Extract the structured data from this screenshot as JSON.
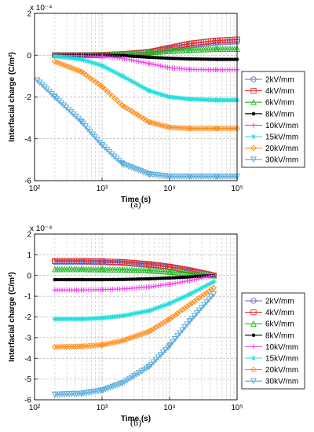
{
  "figure": {
    "panels": [
      {
        "caption": "(a)",
        "xlabel": "Time (s)",
        "ylabel": "Interfacial charge (C/m²)",
        "exponent_label": "x 10⁻⁴"
      },
      {
        "caption": "(b)",
        "xlabel": "Time (s)",
        "ylabel": "Interfacial charge (C/m²)",
        "exponent_label": "x 10⁻⁴"
      }
    ]
  },
  "chart_data": [
    {
      "type": "line",
      "panel": "(a)",
      "xscale": "log",
      "xlim": [
        100,
        100000
      ],
      "ylim": [
        -6,
        2
      ],
      "y_multiplier": "1e-4",
      "xticks": [
        100,
        1000,
        10000,
        100000
      ],
      "xtick_labels": [
        "10²",
        "10³",
        "10⁴",
        "10⁵"
      ],
      "yticks": [
        -6,
        -4,
        -2,
        0,
        2
      ],
      "ytick_labels": [
        "-6",
        "-4",
        "-2",
        "0",
        "2"
      ],
      "grid": "dashed",
      "legend_position": "right",
      "series": [
        {
          "name": "2kV/mm",
          "color": "#6666cc",
          "marker": "circle",
          "x": [
            200,
            500,
            1000,
            2000,
            5000,
            10000,
            20000,
            50000,
            100000
          ],
          "y": [
            0,
            0,
            0.01,
            0.05,
            0.15,
            0.3,
            0.45,
            0.6,
            0.65
          ]
        },
        {
          "name": "4kV/mm",
          "color": "#e03030",
          "marker": "square",
          "x": [
            200,
            500,
            1000,
            2000,
            5000,
            10000,
            20000,
            50000,
            100000
          ],
          "y": [
            0,
            0,
            0.01,
            0.05,
            0.15,
            0.35,
            0.55,
            0.7,
            0.75
          ]
        },
        {
          "name": "6kV/mm",
          "color": "#22bb22",
          "marker": "triangle",
          "x": [
            200,
            500,
            1000,
            2000,
            5000,
            10000,
            20000,
            50000,
            100000
          ],
          "y": [
            0,
            0,
            0.01,
            0.05,
            0.12,
            0.2,
            0.25,
            0.3,
            0.3
          ]
        },
        {
          "name": "8kV/mm",
          "color": "#000000",
          "marker": "dot",
          "x": [
            200,
            500,
            1000,
            2000,
            5000,
            10000,
            20000,
            50000,
            100000
          ],
          "y": [
            0,
            0,
            0,
            -0.02,
            -0.1,
            -0.15,
            -0.18,
            -0.2,
            -0.2
          ]
        },
        {
          "name": "10kV/mm",
          "color": "#ee44ee",
          "marker": "plus",
          "x": [
            200,
            500,
            1000,
            2000,
            5000,
            10000,
            20000,
            50000,
            100000
          ],
          "y": [
            0,
            -0.02,
            -0.05,
            -0.15,
            -0.4,
            -0.6,
            -0.68,
            -0.7,
            -0.7
          ]
        },
        {
          "name": "15kV/mm",
          "color": "#22dddd",
          "marker": "star",
          "x": [
            200,
            500,
            1000,
            2000,
            5000,
            10000,
            20000,
            50000,
            100000
          ],
          "y": [
            -0.05,
            -0.2,
            -0.5,
            -1.0,
            -1.7,
            -2.0,
            -2.1,
            -2.15,
            -2.15
          ]
        },
        {
          "name": "20kV/mm",
          "color": "#ff8c1a",
          "marker": "diamond",
          "x": [
            200,
            500,
            1000,
            2000,
            5000,
            10000,
            20000,
            50000,
            100000
          ],
          "y": [
            -0.3,
            -0.8,
            -1.5,
            -2.4,
            -3.2,
            -3.45,
            -3.5,
            -3.5,
            -3.5
          ]
        },
        {
          "name": "30kV/mm",
          "color": "#55aadd",
          "marker": "tri-down",
          "x": [
            110,
            200,
            500,
            1000,
            2000,
            5000,
            10000,
            20000,
            50000,
            100000
          ],
          "y": [
            -1.2,
            -2.0,
            -3.2,
            -4.3,
            -5.2,
            -5.7,
            -5.8,
            -5.8,
            -5.8,
            -5.8
          ]
        }
      ]
    },
    {
      "type": "line",
      "panel": "(b)",
      "xscale": "log",
      "xlim": [
        100,
        100000
      ],
      "ylim": [
        -6,
        2
      ],
      "y_multiplier": "1e-4",
      "xticks": [
        100,
        1000,
        10000,
        100000
      ],
      "xtick_labels": [
        "10²",
        "10³",
        "10⁴",
        "10⁵"
      ],
      "yticks": [
        -6,
        -5,
        -4,
        -3,
        -2,
        -1,
        0,
        1,
        2
      ],
      "ytick_labels": [
        "-6",
        "-5",
        "-4",
        "-3",
        "-2",
        "-1",
        "0",
        "1",
        "2"
      ],
      "grid": "dashed",
      "legend_position": "right",
      "series": [
        {
          "name": "2kV/mm",
          "color": "#6666cc",
          "marker": "circle",
          "x": [
            200,
            500,
            1000,
            2000,
            5000,
            10000,
            20000,
            45000
          ],
          "y": [
            0.65,
            0.65,
            0.63,
            0.6,
            0.5,
            0.4,
            0.2,
            0
          ]
        },
        {
          "name": "4kV/mm",
          "color": "#e03030",
          "marker": "square",
          "x": [
            200,
            500,
            1000,
            2000,
            5000,
            10000,
            20000,
            45000
          ],
          "y": [
            0.7,
            0.7,
            0.68,
            0.65,
            0.55,
            0.42,
            0.25,
            0
          ]
        },
        {
          "name": "6kV/mm",
          "color": "#22bb22",
          "marker": "triangle",
          "x": [
            200,
            500,
            1000,
            2000,
            5000,
            10000,
            20000,
            45000
          ],
          "y": [
            0.3,
            0.3,
            0.29,
            0.28,
            0.24,
            0.18,
            0.1,
            0
          ]
        },
        {
          "name": "8kV/mm",
          "color": "#000000",
          "marker": "dot",
          "x": [
            200,
            500,
            1000,
            2000,
            5000,
            10000,
            20000,
            45000
          ],
          "y": [
            -0.2,
            -0.2,
            -0.2,
            -0.19,
            -0.16,
            -0.12,
            -0.07,
            0
          ]
        },
        {
          "name": "10kV/mm",
          "color": "#ee44ee",
          "marker": "plus",
          "x": [
            200,
            500,
            1000,
            2000,
            5000,
            10000,
            20000,
            45000
          ],
          "y": [
            -0.7,
            -0.7,
            -0.68,
            -0.65,
            -0.55,
            -0.42,
            -0.25,
            0
          ]
        },
        {
          "name": "15kV/mm",
          "color": "#22dddd",
          "marker": "star",
          "x": [
            200,
            500,
            1000,
            2000,
            5000,
            10000,
            20000,
            45000
          ],
          "y": [
            -2.1,
            -2.1,
            -2.05,
            -1.95,
            -1.7,
            -1.35,
            -0.9,
            -0.3
          ]
        },
        {
          "name": "20kV/mm",
          "color": "#ff8c1a",
          "marker": "diamond",
          "x": [
            200,
            500,
            1000,
            2000,
            5000,
            10000,
            20000,
            45000
          ],
          "y": [
            -3.45,
            -3.42,
            -3.35,
            -3.15,
            -2.7,
            -2.1,
            -1.4,
            -0.6
          ]
        },
        {
          "name": "30kV/mm",
          "color": "#55aadd",
          "marker": "tri-down",
          "x": [
            200,
            500,
            1000,
            2000,
            5000,
            10000,
            20000,
            45000
          ],
          "y": [
            -5.75,
            -5.7,
            -5.55,
            -5.2,
            -4.4,
            -3.4,
            -2.2,
            -0.9
          ]
        }
      ]
    }
  ]
}
